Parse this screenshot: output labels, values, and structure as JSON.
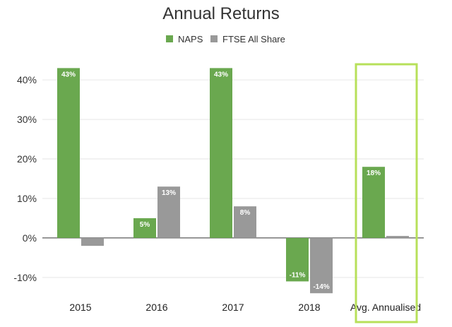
{
  "chart_data": {
    "type": "bar",
    "title": "Annual Returns",
    "categories": [
      "2015",
      "2016",
      "2017",
      "2018",
      "Avg. Annualised"
    ],
    "series": [
      {
        "name": "NAPS",
        "color": "#6aa84f",
        "values": [
          43,
          5,
          43,
          -11,
          18
        ],
        "labels": [
          "43%",
          "5%",
          "43%",
          "-11%",
          "18%"
        ]
      },
      {
        "name": "FTSE All Share",
        "color": "#999999",
        "values": [
          -2,
          13,
          8,
          -14,
          0.5
        ],
        "labels": [
          "",
          "13%",
          "8%",
          "-14%",
          ""
        ]
      }
    ],
    "y_ticks": [
      "-10%",
      "0%",
      "10%",
      "20%",
      "30%",
      "40%"
    ],
    "y_tick_values": [
      -10,
      0,
      10,
      20,
      30,
      40
    ],
    "ylim": [
      -14.5,
      44.5
    ],
    "legend_position": "top",
    "gridlines": true,
    "highlight": {
      "category": "Avg. Annualised",
      "color": "#b7e05a"
    }
  }
}
